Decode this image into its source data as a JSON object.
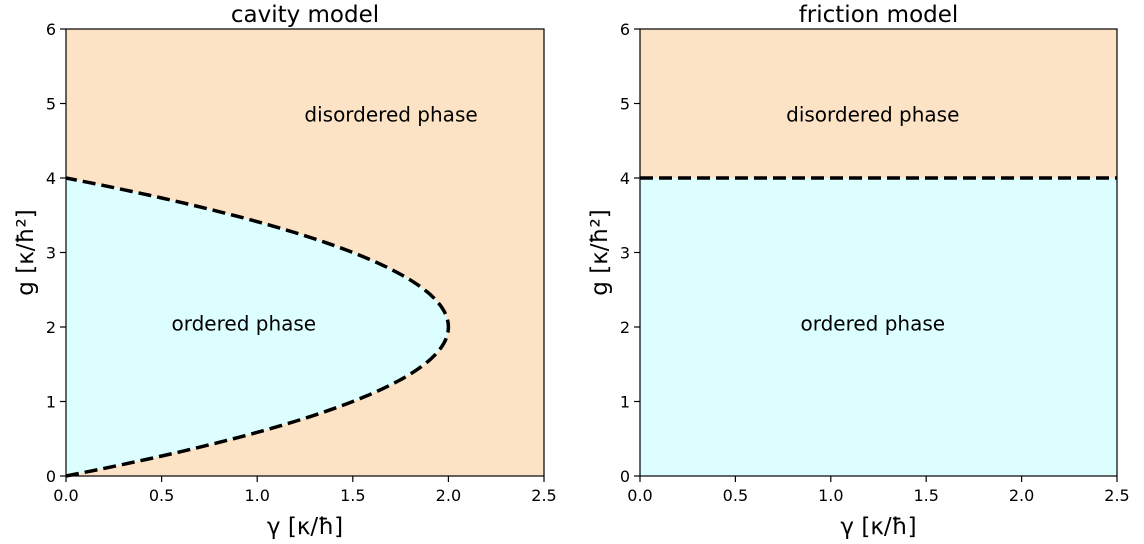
{
  "chart_data": [
    {
      "type": "area",
      "title": "cavity model",
      "xlabel": "γ [κ/ħ]",
      "ylabel": "g [κ/ħ²]",
      "xlim": [
        0,
        2.5
      ],
      "ylim": [
        0,
        6
      ],
      "xticks": [
        "0.0",
        "0.5",
        "1.0",
        "1.5",
        "2.0",
        "2.5"
      ],
      "yticks": [
        "0",
        "1",
        "2",
        "3",
        "4",
        "5",
        "6"
      ],
      "grid": false,
      "boundary": {
        "style": "dashed",
        "shape": "parabola",
        "vertex": [
          2.0,
          2.0
        ],
        "y_range": [
          0,
          4
        ],
        "equation": "γ = g(4 − g)/2"
      },
      "regions": [
        {
          "label": "disordered phase",
          "color": "#fde3c6",
          "label_position": [
            1.7,
            4.85
          ]
        },
        {
          "label": "ordered phase",
          "color": "#dcfefe",
          "label_position": [
            0.93,
            2.05
          ]
        }
      ]
    },
    {
      "type": "area",
      "title": "friction model",
      "xlabel": "γ [κ/ħ]",
      "ylabel": "g [κ/ħ²]",
      "xlim": [
        0,
        2.5
      ],
      "ylim": [
        0,
        6
      ],
      "xticks": [
        "0.0",
        "0.5",
        "1.0",
        "1.5",
        "2.0",
        "2.5"
      ],
      "yticks": [
        "0",
        "1",
        "2",
        "3",
        "4",
        "5",
        "6"
      ],
      "grid": false,
      "boundary": {
        "style": "dashed",
        "shape": "horizontal",
        "y": 4.0
      },
      "regions": [
        {
          "label": "disordered phase",
          "color": "#fde3c6",
          "label_position": [
            1.22,
            4.85
          ]
        },
        {
          "label": "ordered phase",
          "color": "#dcfefe",
          "label_position": [
            1.22,
            2.05
          ]
        }
      ]
    }
  ]
}
